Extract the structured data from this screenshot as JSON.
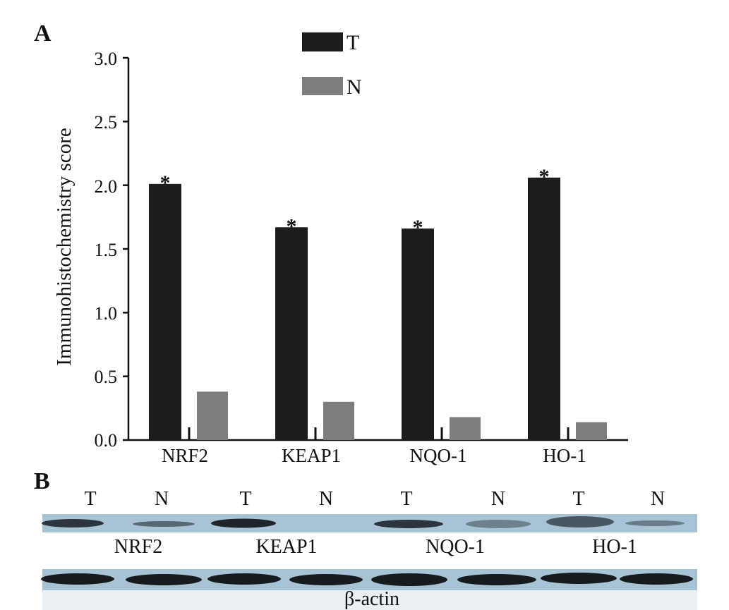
{
  "panels": {
    "a_label": "A",
    "b_label": "B"
  },
  "chart_data": {
    "type": "bar",
    "title": "",
    "xlabel": "",
    "ylabel": "Immunohistochemistry score",
    "ylim": [
      0,
      3.0
    ],
    "yticks": [
      "0.0",
      "0.5",
      "1.0",
      "1.5",
      "2.0",
      "2.5",
      "3.0"
    ],
    "categories": [
      "NRF2",
      "KEAP1",
      "NQO-1",
      "HO-1"
    ],
    "series": [
      {
        "name": "T",
        "color": "#1c1c1c",
        "values": [
          2.01,
          1.67,
          1.66,
          2.06
        ]
      },
      {
        "name": "N",
        "color": "#7d7d7d",
        "values": [
          0.38,
          0.3,
          0.18,
          0.14
        ]
      }
    ],
    "significance_marker": "*",
    "legend_placement": "top-center",
    "grid": false
  },
  "western_blot": {
    "lane_labels": [
      "T",
      "N",
      "T",
      "N",
      "T",
      "N",
      "T",
      "N"
    ],
    "blot_labels": [
      "NRF2",
      "KEAP1",
      "NQO-1",
      "HO-1"
    ],
    "loading_control_label": "β-actin",
    "strip_color": "#a8c4d4",
    "band_color": "#1a1f26"
  }
}
